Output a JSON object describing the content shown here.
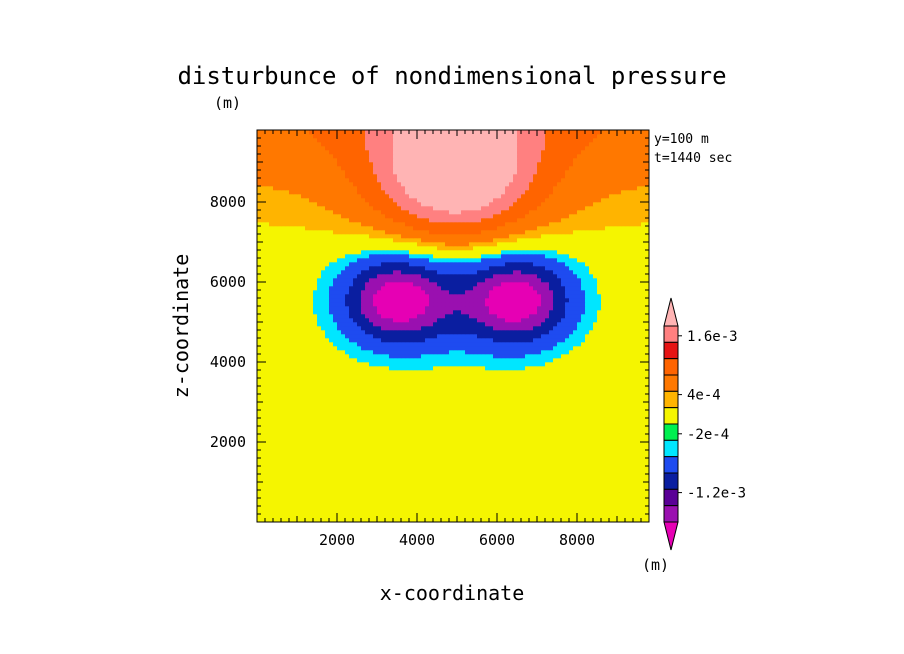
{
  "chart_data": {
    "type": "heatmap",
    "title": "disturbunce of nondimensional pressure",
    "title_unit": "(m)",
    "xlabel": "x-coordinate",
    "ylabel": "z-coordinate",
    "xlim": [
      0,
      9800
    ],
    "ylim": [
      0,
      9800
    ],
    "x_ticks": [
      2000,
      4000,
      6000,
      8000
    ],
    "y_ticks": [
      2000,
      4000,
      6000,
      8000
    ],
    "x_tick_labels": [
      "2000",
      "4000",
      "6000",
      "8000"
    ],
    "y_tick_labels": [
      "2000",
      "4000",
      "6000",
      "8000"
    ],
    "annotations": [
      "y=100 m",
      "t=1440 sec"
    ],
    "colorbar": {
      "unit": "(m)",
      "levels": [
        -0.0016,
        -0.0012,
        -0.0008,
        -0.0004,
        -0.0002,
        0.0002,
        0.0004,
        0.0008,
        0.0012,
        0.0016
      ],
      "tick_labels": [
        {
          "text": "1.6e-3",
          "value": 0.0016
        },
        {
          "text": "4e-4",
          "value": 0.0004
        },
        {
          "text": "-2e-4",
          "value": -0.0002
        },
        {
          "text": "-1.2e-3",
          "value": -0.0012
        }
      ],
      "colors": [
        "#e600b4",
        "#9a10b0",
        "#5a0096",
        "#0a1ea0",
        "#1e4bf0",
        "#00e6ff",
        "#00f050",
        "#f5f500",
        "#ffb400",
        "#ff7800",
        "#ff6400",
        "#e61414",
        "#ff8080",
        "#ffb4b4"
      ]
    },
    "field": {
      "surface_value": 0.0,
      "top_high_center": {
        "x": 4950,
        "z": 8700,
        "value": 0.0017
      },
      "low_centers": [
        {
          "x": 3500,
          "z": 5550,
          "value": -0.0017
        },
        {
          "x": 6500,
          "z": 5550,
          "value": -0.0017
        }
      ]
    }
  }
}
